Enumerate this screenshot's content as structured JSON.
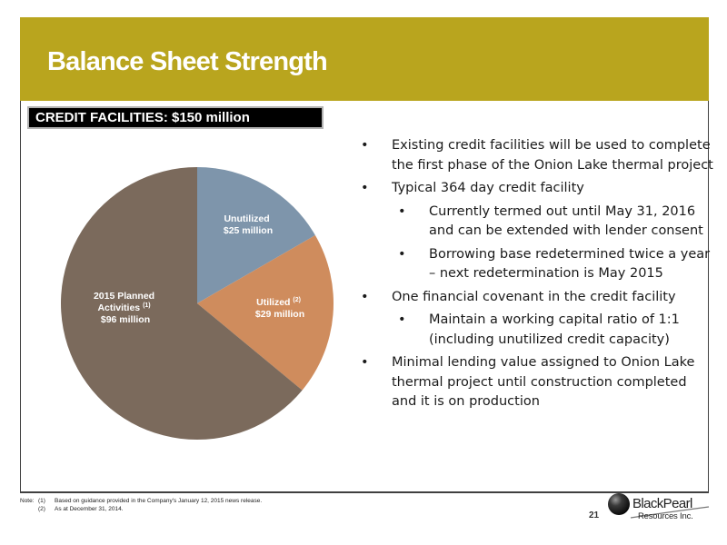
{
  "slide": {
    "title": "Balance Sheet Strength",
    "credit_label": "CREDIT FACILITIES:  $150 million",
    "page_number": "21",
    "colors": {
      "title_bar": "#b9a51e",
      "credit_box_bg": "#000000"
    }
  },
  "chart_data": {
    "type": "pie",
    "title": "",
    "total": 150,
    "slices": [
      {
        "label_line1": "Unutilized",
        "label_line2": "$25 million",
        "value": 25,
        "color": "#7e95ab"
      },
      {
        "label_line1": "Utilized ",
        "label_sup": "(2)",
        "label_line2": "$29 million",
        "value": 29,
        "color": "#cf8c5d"
      },
      {
        "label_line1": "2015 Planned",
        "label_line2": "Activities ",
        "label_sup": "(1)",
        "label_line3": "$96 million",
        "value": 96,
        "color": "#7b6a5c"
      }
    ]
  },
  "bullets": [
    {
      "level": 1,
      "symbol": "•",
      "text": "Existing credit facilities will be used to complete the first phase of the Onion Lake thermal project"
    },
    {
      "level": 1,
      "symbol": "•",
      "text": "Typical 364 day credit facility"
    },
    {
      "level": 2,
      "symbol": "•",
      "text": "Currently termed out until May 31, 2016 and can be extended with lender consent"
    },
    {
      "level": 2,
      "symbol": "•",
      "text": "Borrowing base redetermined twice a year – next redetermination is May 2015"
    },
    {
      "level": 1,
      "symbol": "•",
      "text": "One financial covenant in the credit facility"
    },
    {
      "level": 2,
      "symbol": "•",
      "text": "Maintain a working capital ratio of 1:1 (including unutilized credit capacity)"
    },
    {
      "level": 1,
      "symbol": "•",
      "text": "Minimal lending value assigned to Onion Lake thermal project until construction completed and it is on production"
    }
  ],
  "notes": {
    "label": "Note:",
    "items": [
      {
        "num": "(1)",
        "text": "Based on guidance provided in the Company's January 12, 2015 news release."
      },
      {
        "num": "(2)",
        "text": "As at December 31, 2014."
      }
    ]
  },
  "logo": {
    "line1": "BlackPearl",
    "line2": "Resources Inc."
  }
}
